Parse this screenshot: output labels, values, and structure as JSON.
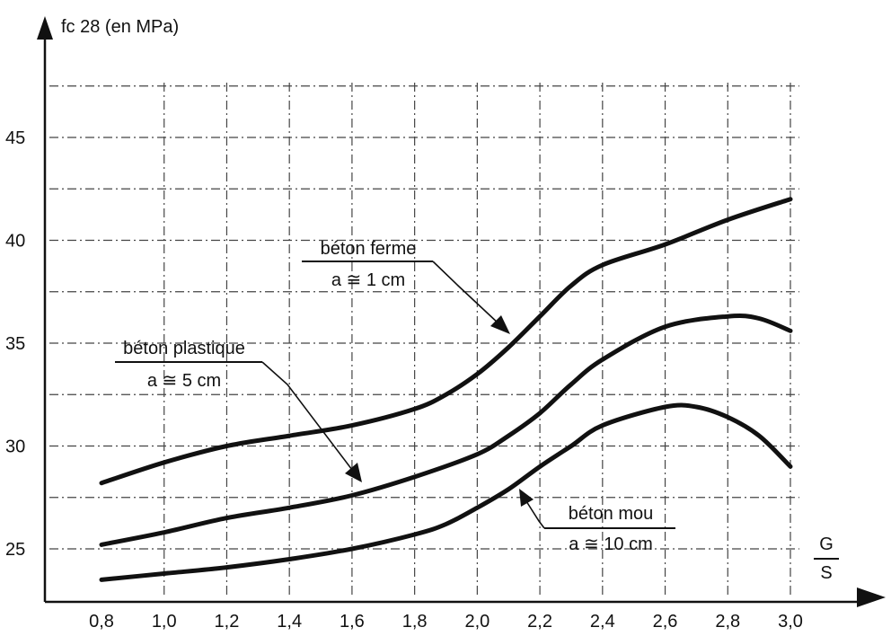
{
  "chart_data": {
    "type": "line",
    "ylabel": "fc 28 (en MPa)",
    "xlabel_num": "G",
    "xlabel_den": "S",
    "xlim": [
      0.8,
      3.0
    ],
    "ylim": [
      25,
      45
    ],
    "xticks": [
      "0,8",
      "1,0",
      "1,2",
      "1,4",
      "1,6",
      "1,8",
      "2,0",
      "2,2",
      "2,4",
      "2,6",
      "2,8",
      "3,0"
    ],
    "yticks": [
      "25",
      "30",
      "35",
      "40",
      "45"
    ],
    "grid": true,
    "series": [
      {
        "name": "béton ferme",
        "sublabel": "a ≅ 1 cm",
        "x": [
          0.8,
          1.0,
          1.2,
          1.4,
          1.6,
          1.8,
          1.9,
          2.0,
          2.1,
          2.2,
          2.3,
          2.4,
          2.6,
          2.8,
          3.0
        ],
        "y": [
          28.2,
          29.2,
          30.0,
          30.5,
          31.0,
          31.8,
          32.5,
          33.5,
          34.8,
          36.3,
          37.8,
          38.8,
          39.8,
          41.0,
          42.0
        ]
      },
      {
        "name": "béton plastique",
        "sublabel": "a ≅ 5 cm",
        "x": [
          0.8,
          1.0,
          1.2,
          1.4,
          1.6,
          1.8,
          2.0,
          2.1,
          2.2,
          2.3,
          2.4,
          2.6,
          2.8,
          2.9,
          3.0
        ],
        "y": [
          25.2,
          25.8,
          26.5,
          27.0,
          27.6,
          28.5,
          29.6,
          30.5,
          31.6,
          33.0,
          34.2,
          35.8,
          36.3,
          36.2,
          35.6
        ]
      },
      {
        "name": "béton mou",
        "sublabel": "a ≅ 10 cm",
        "x": [
          0.8,
          1.0,
          1.2,
          1.4,
          1.6,
          1.8,
          1.9,
          2.0,
          2.1,
          2.2,
          2.3,
          2.4,
          2.6,
          2.7,
          2.8,
          2.9,
          3.0
        ],
        "y": [
          23.5,
          23.8,
          24.1,
          24.5,
          25.0,
          25.7,
          26.2,
          27.0,
          27.9,
          29.0,
          30.0,
          31.0,
          31.9,
          31.9,
          31.4,
          30.5,
          29.0
        ]
      }
    ]
  }
}
